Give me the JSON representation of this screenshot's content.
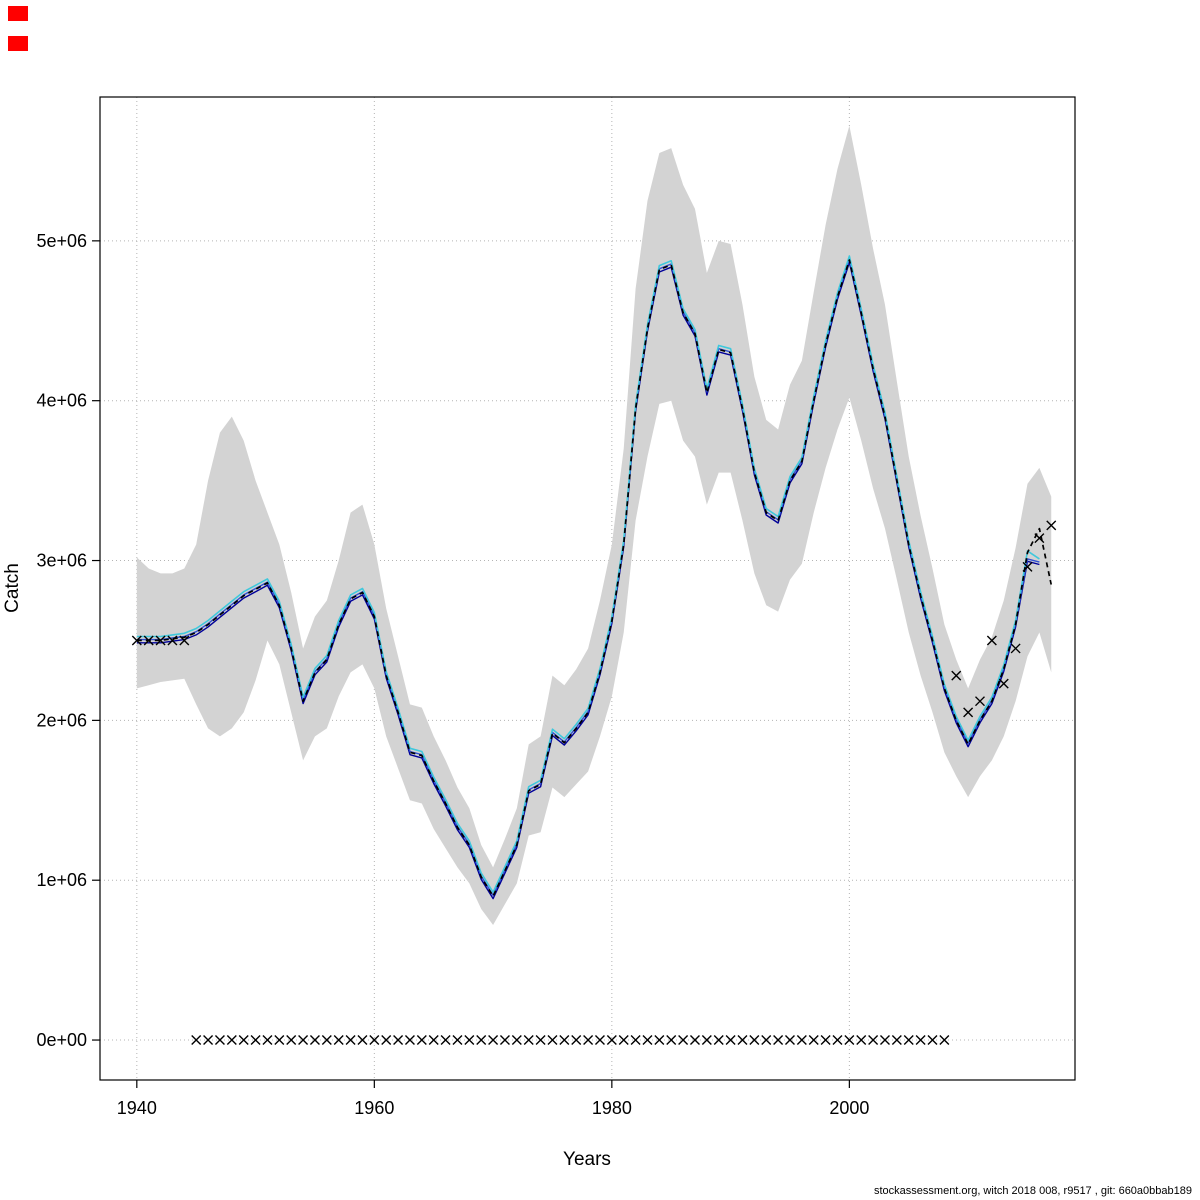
{
  "page": {
    "background": "#ffffff"
  },
  "decorations": {
    "marker_color": "#ff0000"
  },
  "footer": {
    "text": "stockassessment.org, witch 2018 008, r9517 , git: 660a0bbab189"
  },
  "chart_data": {
    "type": "line",
    "title": "",
    "xlabel": "Years",
    "ylabel": "Catch",
    "xlim": [
      1936.9,
      2019.0
    ],
    "ylim": [
      -250000,
      5900000
    ],
    "grid": "dotted",
    "grid_color": "#b4b4b4",
    "x_ticks": [
      1940,
      1960,
      1980,
      2000
    ],
    "x_tick_labels": [
      "1940",
      "1960",
      "1980",
      "2000"
    ],
    "y_ticks": [
      0,
      1000000,
      2000000,
      3000000,
      4000000,
      5000000
    ],
    "y_tick_labels": [
      "0e+00",
      "1e+06",
      "2e+06",
      "3e+06",
      "4e+06",
      "5e+06"
    ],
    "years": [
      1940,
      1941,
      1942,
      1943,
      1944,
      1945,
      1946,
      1947,
      1948,
      1949,
      1950,
      1951,
      1952,
      1953,
      1954,
      1955,
      1956,
      1957,
      1958,
      1959,
      1960,
      1961,
      1962,
      1963,
      1964,
      1965,
      1966,
      1967,
      1968,
      1969,
      1970,
      1971,
      1972,
      1973,
      1974,
      1975,
      1976,
      1977,
      1978,
      1979,
      1980,
      1981,
      1982,
      1983,
      1984,
      1985,
      1986,
      1987,
      1988,
      1989,
      1990,
      1991,
      1992,
      1993,
      1994,
      1995,
      1996,
      1997,
      1998,
      1999,
      2000,
      2001,
      2002,
      2003,
      2004,
      2005,
      2006,
      2007,
      2008,
      2009,
      2010,
      2011,
      2012,
      2013,
      2014,
      2015,
      2016,
      2017
    ],
    "band": {
      "color": "#d3d3d3",
      "lower": [
        2200000,
        2220000,
        2240000,
        2250000,
        2260000,
        2100000,
        1950000,
        1900000,
        1950000,
        2050000,
        2250000,
        2500000,
        2350000,
        2050000,
        1750000,
        1900000,
        1950000,
        2150000,
        2300000,
        2350000,
        2200000,
        1900000,
        1700000,
        1500000,
        1480000,
        1320000,
        1200000,
        1080000,
        980000,
        820000,
        720000,
        850000,
        980000,
        1280000,
        1300000,
        1580000,
        1520000,
        1600000,
        1680000,
        1900000,
        2150000,
        2550000,
        3250000,
        3650000,
        3980000,
        4000000,
        3750000,
        3650000,
        3350000,
        3550000,
        3550000,
        3250000,
        2920000,
        2720000,
        2680000,
        2880000,
        2980000,
        3300000,
        3580000,
        3820000,
        4020000,
        3750000,
        3450000,
        3200000,
        2880000,
        2550000,
        2280000,
        2050000,
        1800000,
        1650000,
        1520000,
        1650000,
        1750000,
        1900000,
        2120000,
        2400000,
        2550000,
        2300000
      ],
      "upper": [
        3020000,
        2950000,
        2920000,
        2920000,
        2950000,
        3100000,
        3500000,
        3800000,
        3900000,
        3750000,
        3500000,
        3300000,
        3100000,
        2800000,
        2450000,
        2650000,
        2750000,
        3000000,
        3300000,
        3350000,
        3100000,
        2700000,
        2400000,
        2100000,
        2080000,
        1900000,
        1750000,
        1580000,
        1450000,
        1220000,
        1080000,
        1260000,
        1450000,
        1850000,
        1900000,
        2280000,
        2220000,
        2320000,
        2450000,
        2750000,
        3100000,
        3700000,
        4700000,
        5250000,
        5550000,
        5580000,
        5350000,
        5200000,
        4800000,
        5000000,
        4980000,
        4600000,
        4150000,
        3880000,
        3820000,
        4100000,
        4250000,
        4680000,
        5100000,
        5450000,
        5720000,
        5350000,
        4950000,
        4600000,
        4120000,
        3650000,
        3280000,
        2950000,
        2600000,
        2380000,
        2200000,
        2380000,
        2520000,
        2750000,
        3080000,
        3480000,
        3580000,
        3400000
      ]
    },
    "series": [
      {
        "name": "fit-navy",
        "color": "#000099",
        "dash": "solid",
        "width": 1.4,
        "values": [
          2485000,
          2485000,
          2485000,
          2495000,
          2505000,
          2535000,
          2585000,
          2645000,
          2705000,
          2765000,
          2805000,
          2845000,
          2705000,
          2435000,
          2105000,
          2285000,
          2365000,
          2585000,
          2745000,
          2785000,
          2635000,
          2265000,
          2035000,
          1785000,
          1765000,
          1605000,
          1465000,
          1315000,
          1205000,
          1005000,
          885000,
          1045000,
          1205000,
          1545000,
          1585000,
          1905000,
          1845000,
          1935000,
          2035000,
          2285000,
          2605000,
          3085000,
          3935000,
          4435000,
          4805000,
          4835000,
          4535000,
          4405000,
          4035000,
          4305000,
          4285000,
          3935000,
          3535000,
          3285000,
          3235000,
          3485000,
          3605000,
          3985000,
          4335000,
          4635000,
          4865000,
          4535000,
          4185000,
          3885000,
          3485000,
          3085000,
          2765000,
          2485000,
          2185000,
          1985000,
          1835000,
          1985000,
          2105000,
          2305000,
          2585000,
          2995000,
          2975000,
          null
        ]
      },
      {
        "name": "fit-blue",
        "color": "#3050d0",
        "dash": "solid",
        "width": 1.4,
        "values": [
          2505000,
          2505000,
          2505000,
          2515000,
          2525000,
          2555000,
          2605000,
          2665000,
          2725000,
          2785000,
          2825000,
          2865000,
          2725000,
          2455000,
          2125000,
          2305000,
          2385000,
          2605000,
          2765000,
          2805000,
          2655000,
          2285000,
          2055000,
          1805000,
          1785000,
          1625000,
          1485000,
          1335000,
          1225000,
          1025000,
          905000,
          1065000,
          1225000,
          1565000,
          1605000,
          1925000,
          1865000,
          1955000,
          2055000,
          2305000,
          2625000,
          3105000,
          3955000,
          4455000,
          4825000,
          4855000,
          4555000,
          4425000,
          4055000,
          4325000,
          4305000,
          3955000,
          3555000,
          3305000,
          3255000,
          3505000,
          3625000,
          4005000,
          4355000,
          4655000,
          4885000,
          4555000,
          4205000,
          3905000,
          3505000,
          3105000,
          2785000,
          2505000,
          2205000,
          2005000,
          1855000,
          2005000,
          2125000,
          2325000,
          2605000,
          3010000,
          2990000,
          null
        ]
      },
      {
        "name": "fit-cyan",
        "color": "#3fc8dc",
        "dash": "solid",
        "width": 1.6,
        "values": [
          2525000,
          2525000,
          2525000,
          2535000,
          2545000,
          2575000,
          2625000,
          2685000,
          2745000,
          2805000,
          2845000,
          2885000,
          2745000,
          2475000,
          2145000,
          2325000,
          2405000,
          2625000,
          2785000,
          2825000,
          2675000,
          2305000,
          2075000,
          1825000,
          1805000,
          1645000,
          1505000,
          1355000,
          1245000,
          1045000,
          925000,
          1085000,
          1245000,
          1585000,
          1625000,
          1945000,
          1885000,
          1975000,
          2075000,
          2325000,
          2645000,
          3125000,
          3975000,
          4475000,
          4845000,
          4875000,
          4575000,
          4445000,
          4075000,
          4345000,
          4325000,
          3975000,
          3575000,
          3325000,
          3275000,
          3525000,
          3645000,
          4025000,
          4375000,
          4675000,
          4905000,
          4575000,
          4225000,
          3925000,
          3525000,
          3125000,
          2805000,
          2525000,
          2225000,
          2025000,
          1875000,
          2025000,
          2145000,
          2345000,
          2625000,
          3060000,
          3010000,
          null
        ]
      },
      {
        "name": "estimate-dashed",
        "color": "#000000",
        "dash": "dashed",
        "width": 1.7,
        "values": [
          2500000,
          2500000,
          2500000,
          2510000,
          2520000,
          2550000,
          2600000,
          2660000,
          2720000,
          2780000,
          2820000,
          2860000,
          2720000,
          2450000,
          2120000,
          2300000,
          2380000,
          2600000,
          2760000,
          2800000,
          2650000,
          2280000,
          2050000,
          1800000,
          1780000,
          1620000,
          1480000,
          1330000,
          1220000,
          1020000,
          900000,
          1060000,
          1220000,
          1560000,
          1600000,
          1920000,
          1860000,
          1950000,
          2050000,
          2300000,
          2620000,
          3100000,
          3950000,
          4450000,
          4820000,
          4850000,
          4550000,
          4420000,
          4050000,
          4320000,
          4300000,
          3950000,
          3550000,
          3300000,
          3250000,
          3500000,
          3620000,
          4000000,
          4350000,
          4650000,
          4880000,
          4550000,
          4200000,
          3900000,
          3500000,
          3100000,
          2780000,
          2500000,
          2200000,
          2000000,
          1850000,
          2000000,
          2120000,
          2320000,
          2600000,
          3050000,
          3200000,
          2850000
        ]
      }
    ],
    "markers": {
      "symbol": "x",
      "color": "#000000",
      "points": [
        [
          1940,
          2500000
        ],
        [
          1941,
          2500000
        ],
        [
          1942,
          2500000
        ],
        [
          1943,
          2500000
        ],
        [
          1944,
          2500000
        ],
        [
          1945,
          0
        ],
        [
          1946,
          0
        ],
        [
          1947,
          0
        ],
        [
          1948,
          0
        ],
        [
          1949,
          0
        ],
        [
          1950,
          0
        ],
        [
          1951,
          0
        ],
        [
          1952,
          0
        ],
        [
          1953,
          0
        ],
        [
          1954,
          0
        ],
        [
          1955,
          0
        ],
        [
          1956,
          0
        ],
        [
          1957,
          0
        ],
        [
          1958,
          0
        ],
        [
          1959,
          0
        ],
        [
          1960,
          0
        ],
        [
          1961,
          0
        ],
        [
          1962,
          0
        ],
        [
          1963,
          0
        ],
        [
          1964,
          0
        ],
        [
          1965,
          0
        ],
        [
          1966,
          0
        ],
        [
          1967,
          0
        ],
        [
          1968,
          0
        ],
        [
          1969,
          0
        ],
        [
          1970,
          0
        ],
        [
          1971,
          0
        ],
        [
          1972,
          0
        ],
        [
          1973,
          0
        ],
        [
          1974,
          0
        ],
        [
          1975,
          0
        ],
        [
          1976,
          0
        ],
        [
          1977,
          0
        ],
        [
          1978,
          0
        ],
        [
          1979,
          0
        ],
        [
          1980,
          0
        ],
        [
          1981,
          0
        ],
        [
          1982,
          0
        ],
        [
          1983,
          0
        ],
        [
          1984,
          0
        ],
        [
          1985,
          0
        ],
        [
          1986,
          0
        ],
        [
          1987,
          0
        ],
        [
          1988,
          0
        ],
        [
          1989,
          0
        ],
        [
          1990,
          0
        ],
        [
          1991,
          0
        ],
        [
          1992,
          0
        ],
        [
          1993,
          0
        ],
        [
          1994,
          0
        ],
        [
          1995,
          0
        ],
        [
          1996,
          0
        ],
        [
          1997,
          0
        ],
        [
          1998,
          0
        ],
        [
          1999,
          0
        ],
        [
          2000,
          0
        ],
        [
          2001,
          0
        ],
        [
          2002,
          0
        ],
        [
          2003,
          0
        ],
        [
          2004,
          0
        ],
        [
          2005,
          0
        ],
        [
          2006,
          0
        ],
        [
          2007,
          0
        ],
        [
          2008,
          0
        ],
        [
          2009,
          2280000
        ],
        [
          2010,
          2050000
        ],
        [
          2011,
          2120000
        ],
        [
          2012,
          2500000
        ],
        [
          2013,
          2230000
        ],
        [
          2014,
          2450000
        ],
        [
          2015,
          2960000
        ],
        [
          2016,
          3140000
        ],
        [
          2017,
          3220000
        ]
      ]
    }
  }
}
